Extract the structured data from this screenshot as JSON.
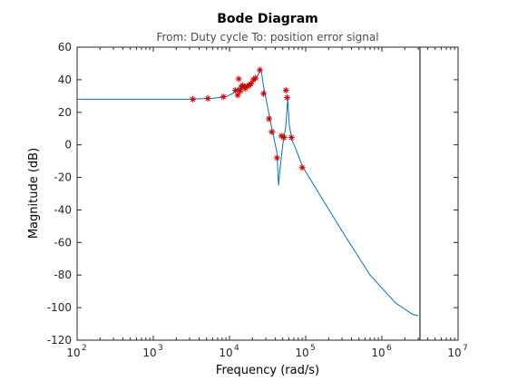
{
  "colors": {
    "response": "#0072bd",
    "markers": "#cc0000",
    "axes": "#262626",
    "cursor": "#000000",
    "subtitle": "#4d4d4d"
  },
  "chart_data": {
    "type": "line",
    "title": "Bode Diagram",
    "subtitle": "From: Duty cycle  To: position error signal",
    "xlabel": "Frequency  (rad/s)",
    "ylabel": "Magnitude (dB)",
    "xscale": "log",
    "xlim": [
      100,
      10000000
    ],
    "ylim": [
      -120,
      60
    ],
    "grid": false,
    "x_ticks": [
      {
        "base": "10",
        "exp": "2",
        "value": 100
      },
      {
        "base": "10",
        "exp": "3",
        "value": 1000
      },
      {
        "base": "10",
        "exp": "4",
        "value": 10000
      },
      {
        "base": "10",
        "exp": "5",
        "value": 100000
      },
      {
        "base": "10",
        "exp": "6",
        "value": 1000000
      },
      {
        "base": "10",
        "exp": "7",
        "value": 10000000
      }
    ],
    "y_ticks": [
      "60",
      "40",
      "20",
      "0",
      "-20",
      "-40",
      "-60",
      "-80",
      "-100",
      "-120"
    ],
    "series": [
      {
        "style": "line",
        "color": "#0072bd",
        "points": [
          [
            100,
            28
          ],
          [
            300,
            28
          ],
          [
            1000,
            28
          ],
          [
            3000,
            28
          ],
          [
            6000,
            28.6
          ],
          [
            9000,
            29.6
          ],
          [
            11000,
            31.5
          ],
          [
            12500,
            33.5
          ],
          [
            13000,
            35
          ],
          [
            13500,
            33.5
          ],
          [
            15000,
            35
          ],
          [
            17000,
            36
          ],
          [
            20000,
            38
          ],
          [
            23000,
            42
          ],
          [
            25000,
            45
          ],
          [
            26000,
            46
          ],
          [
            28000,
            36
          ],
          [
            32000,
            22
          ],
          [
            36000,
            10
          ],
          [
            40000,
            0
          ],
          [
            42000,
            -5
          ],
          [
            44000,
            -25
          ],
          [
            46000,
            -15
          ],
          [
            50000,
            0
          ],
          [
            55000,
            12
          ],
          [
            58000,
            28
          ],
          [
            61000,
            12
          ],
          [
            66000,
            3
          ],
          [
            75000,
            -3
          ],
          [
            90000,
            -13
          ],
          [
            150000,
            -30
          ],
          [
            300000,
            -53
          ],
          [
            700000,
            -80
          ],
          [
            1500000,
            -97
          ],
          [
            2500000,
            -104
          ],
          [
            3000000,
            -105
          ]
        ]
      },
      {
        "style": "markers",
        "marker": "asterisk",
        "color": "#cc0000",
        "points": [
          [
            3300,
            28
          ],
          [
            5200,
            28.5
          ],
          [
            8300,
            29.5
          ],
          [
            12000,
            33.5
          ],
          [
            12800,
            30.5
          ],
          [
            13200,
            40.5
          ],
          [
            13800,
            33
          ],
          [
            14200,
            35.5
          ],
          [
            15000,
            36.5
          ],
          [
            16000,
            34.5
          ],
          [
            17000,
            36
          ],
          [
            18000,
            36.5
          ],
          [
            19000,
            37.5
          ],
          [
            20500,
            40
          ],
          [
            22000,
            41
          ],
          [
            25000,
            46
          ],
          [
            28000,
            31.5
          ],
          [
            33000,
            16
          ],
          [
            36000,
            8
          ],
          [
            42000,
            -8
          ],
          [
            48000,
            5.5
          ],
          [
            52000,
            4.5
          ],
          [
            55000,
            33.5
          ],
          [
            57000,
            29
          ],
          [
            65000,
            4.5
          ],
          [
            90000,
            -14
          ]
        ]
      }
    ],
    "cursor_x": 3160000
  }
}
